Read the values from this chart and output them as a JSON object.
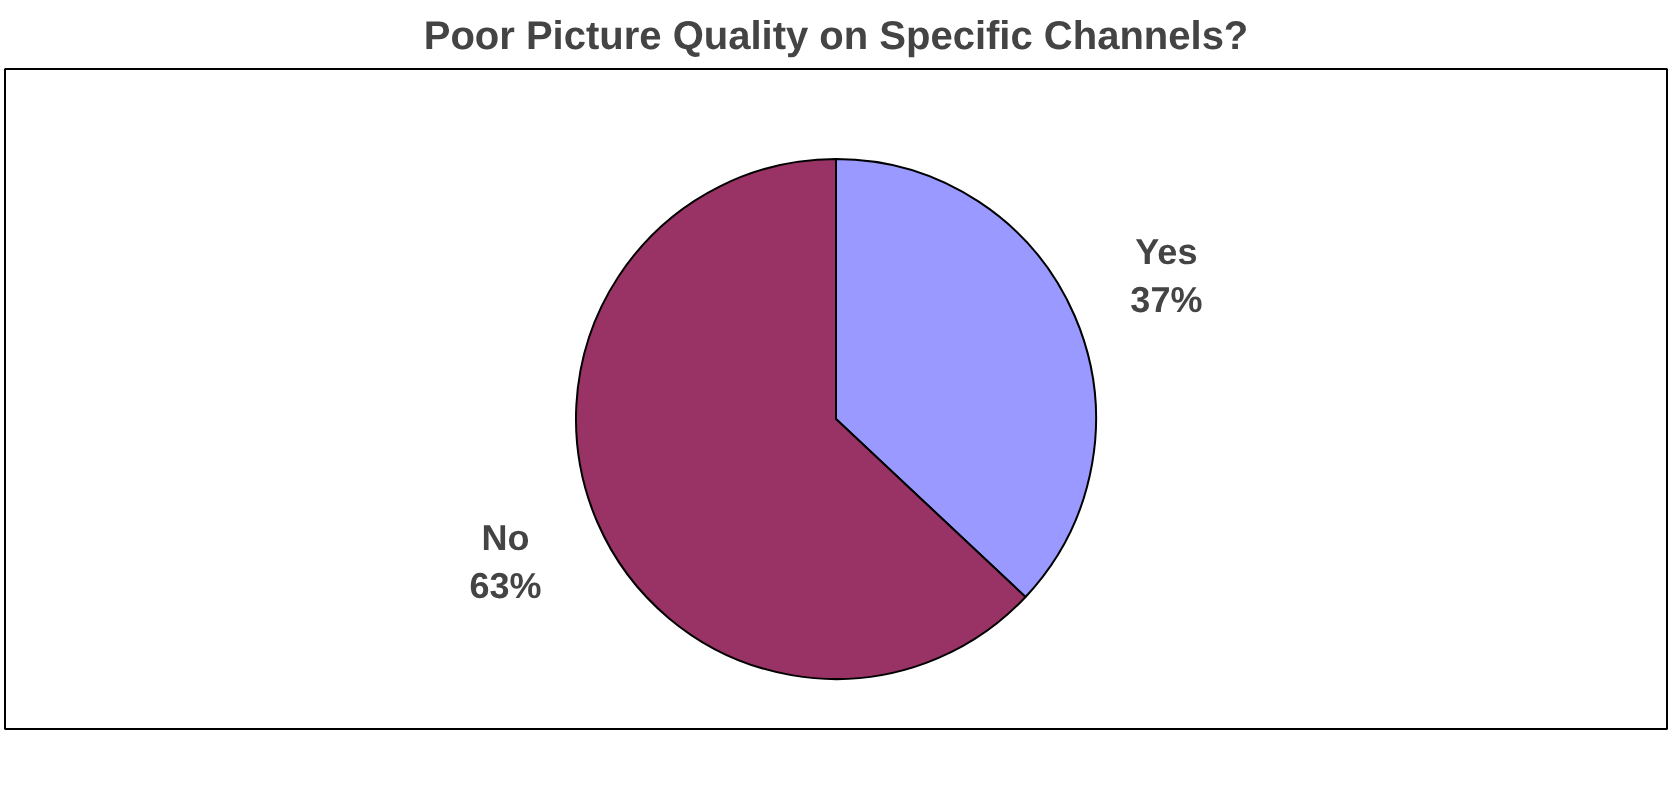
{
  "chart_data": {
    "type": "pie",
    "title": "Poor Picture Quality on Specific Channels?",
    "categories": [
      "Yes",
      "No"
    ],
    "values": [
      37,
      63
    ],
    "value_labels": [
      "37%",
      "63%"
    ],
    "colors": [
      "#9999ff",
      "#993366"
    ]
  }
}
